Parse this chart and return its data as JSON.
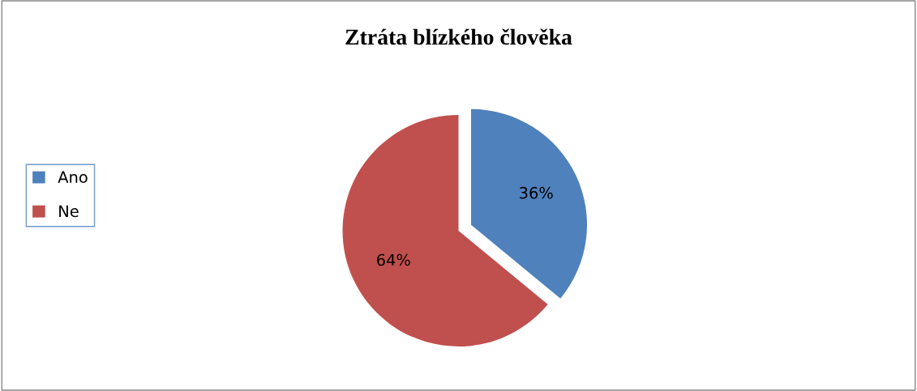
{
  "chart_data": {
    "type": "pie",
    "title": "Ztráta blízkého člověka",
    "categories": [
      "Ano",
      "Ne"
    ],
    "values": [
      36,
      64
    ],
    "colors": [
      "#4f81bd",
      "#c0504d"
    ],
    "value_labels": [
      "36%",
      "64%"
    ],
    "legend": "left"
  }
}
